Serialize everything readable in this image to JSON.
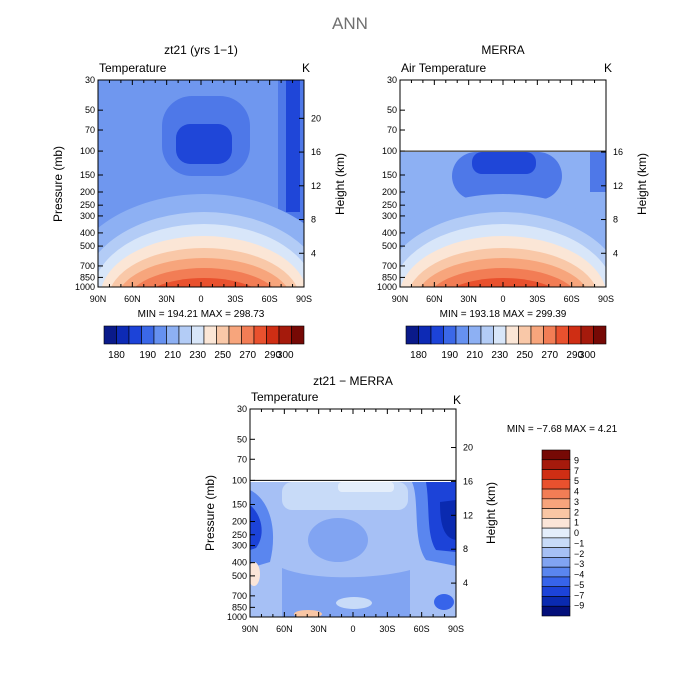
{
  "page_title": "ANN",
  "colors": {
    "heading": "#707070",
    "blank": "#ffffff",
    "temperature_scale": [
      "#0a1a8a",
      "#0d2ab5",
      "#1c43d8",
      "#3b68e8",
      "#6691f0",
      "#8db0f3",
      "#b3ccf6",
      "#d8e6f9",
      "#fbe6d6",
      "#f9c8a8",
      "#f7a57c",
      "#f27d55",
      "#e9512e",
      "#cf2e14",
      "#a51a0c",
      "#760905"
    ],
    "difference_scale": [
      "#030f7a",
      "#0a2ab0",
      "#1c43d8",
      "#3764ea",
      "#5a86ef",
      "#81a4f2",
      "#a6c0f5",
      "#c8dbf8",
      "#e4eefb",
      "#fbe5d8",
      "#f9c6a4",
      "#f7a47c",
      "#f27d55",
      "#e9512e",
      "#cf2e14",
      "#a51a0c",
      "#760905"
    ]
  },
  "chart_data": [
    {
      "type": "heatmap",
      "title": "zt21 (yrs 1−1)",
      "subtitle_left": "Temperature",
      "subtitle_right": "K",
      "ylabel": "Pressure (mb)",
      "ylabel_right": "Height (km)",
      "x_ticks": [
        "90N",
        "60N",
        "30N",
        "0",
        "30S",
        "60S",
        "90S"
      ],
      "x_range": [
        90,
        -90
      ],
      "y_ticks": [
        "30",
        "50",
        "70",
        "100",
        "150",
        "200",
        "250",
        "300",
        "400",
        "500",
        "700",
        "850",
        "1000"
      ],
      "y_range_mb": [
        1000,
        30
      ],
      "y_scale": "log",
      "right_ticks": [
        "4",
        "8",
        "12",
        "16",
        "20"
      ],
      "data_range_mb": [
        1000,
        30
      ],
      "colorbar_levels": [
        "180",
        "190",
        "210",
        "230",
        "250",
        "270",
        "290",
        "300"
      ],
      "stats": "MIN = 194.21   MAX = 298.73",
      "min": 194.21,
      "max": 298.73
    },
    {
      "type": "heatmap",
      "title": "MERRA",
      "subtitle_left": "Air Temperature",
      "subtitle_right": "K",
      "ylabel": "",
      "ylabel_right": "Height (km)",
      "x_ticks": [
        "90N",
        "60N",
        "30N",
        "0",
        "30S",
        "60S",
        "90S"
      ],
      "x_range": [
        90,
        -90
      ],
      "y_ticks": [
        "30",
        "50",
        "70",
        "100",
        "150",
        "200",
        "250",
        "300",
        "400",
        "500",
        "700",
        "850",
        "1000"
      ],
      "y_range_mb": [
        1000,
        30
      ],
      "y_scale": "log",
      "right_ticks": [
        "4",
        "8",
        "12",
        "16"
      ],
      "data_range_mb": [
        1000,
        100
      ],
      "colorbar_levels": [
        "180",
        "190",
        "210",
        "230",
        "250",
        "270",
        "290",
        "300"
      ],
      "stats": "MIN = 193.18   MAX = 299.39",
      "min": 193.18,
      "max": 299.39
    },
    {
      "type": "heatmap",
      "title": "zt21 − MERRA",
      "subtitle_left": "Temperature",
      "subtitle_right": "K",
      "ylabel": "Pressure (mb)",
      "ylabel_right": "Height (km)",
      "x_ticks": [
        "90N",
        "60N",
        "30N",
        "0",
        "30S",
        "60S",
        "90S"
      ],
      "x_range": [
        90,
        -90
      ],
      "y_ticks": [
        "30",
        "50",
        "70",
        "100",
        "150",
        "200",
        "250",
        "300",
        "400",
        "500",
        "700",
        "850",
        "1000"
      ],
      "y_range_mb": [
        1000,
        30
      ],
      "y_scale": "log",
      "right_ticks": [
        "4",
        "8",
        "12",
        "16",
        "20"
      ],
      "data_range_mb": [
        1000,
        100
      ],
      "colorbar_levels": [
        "9",
        "7",
        "5",
        "4",
        "3",
        "2",
        "1",
        "0",
        "−1",
        "−2",
        "−3",
        "−4",
        "−5",
        "−7",
        "−9"
      ],
      "stats": "MIN =   −7.68   MAX =    4.21",
      "min": -7.68,
      "max": 4.21
    }
  ]
}
